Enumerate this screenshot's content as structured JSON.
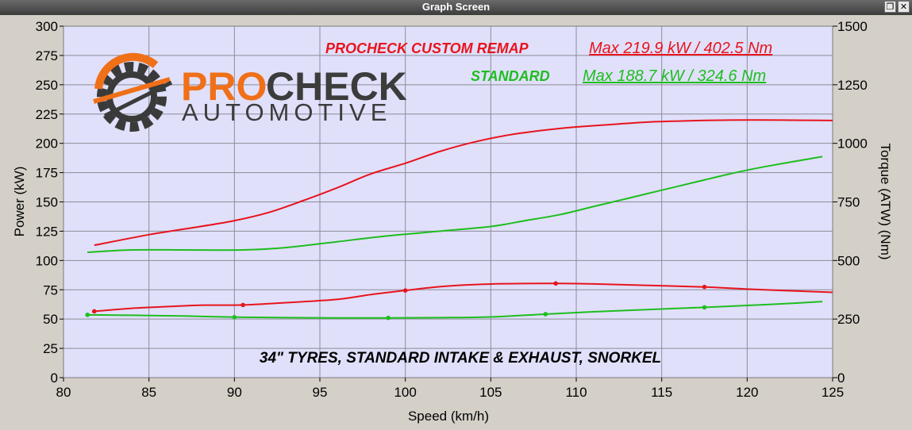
{
  "window": {
    "title": "Graph Screen",
    "restore_icon": "restore-icon",
    "close_icon": "close-icon",
    "close_glyph": "✕",
    "restore_glyph": "❐"
  },
  "logo": {
    "line1_pro": "PRO",
    "line1_check": "CHECK",
    "line2": "AUTOMOTIVE"
  },
  "labels": {
    "remap_title": "PROCHECK CUSTOM REMAP",
    "remap_max": "Max 219.9 kW  / 402.5 Nm",
    "standard_title": "STANDARD",
    "standard_max": "Max 188.7 kW  / 324.6 Nm",
    "note": "34\" TYRES, STANDARD INTAKE & EXHAUST, SNORKEL"
  },
  "colors": {
    "remap": "#e8141c",
    "standard": "#1ebe1e",
    "plot_bg": "#e0e0fb",
    "grid": "#8c8c96"
  },
  "chart_data": {
    "type": "line",
    "xlabel": "Speed (km/h)",
    "ylabel": "Power (kW)",
    "y2label": "Torque (ATW) (Nm)",
    "xlim": [
      80,
      125
    ],
    "ylim": [
      0,
      300
    ],
    "y2lim": [
      0,
      1500
    ],
    "xticks": [
      80,
      85,
      90,
      95,
      100,
      105,
      110,
      115,
      120,
      125
    ],
    "yticks": [
      0,
      25,
      50,
      75,
      100,
      125,
      150,
      175,
      200,
      225,
      250,
      275,
      300
    ],
    "y2ticks": [
      0,
      250,
      500,
      750,
      1000,
      1250,
      1500
    ],
    "grid": true,
    "series": [
      {
        "name": "PROCHECK CUSTOM REMAP",
        "quantity": "power",
        "axis": "left",
        "color": "#e8141c",
        "x": [
          81.8,
          85,
          88,
          90,
          92,
          94,
          96,
          98,
          100,
          102,
          104,
          106,
          108,
          110,
          112,
          114,
          116,
          118,
          120,
          122,
          125
        ],
        "y": [
          113,
          122,
          129,
          134,
          141,
          151,
          162,
          174,
          183,
          193,
          201,
          207,
          211,
          214,
          216,
          218,
          219,
          219.7,
          219.9,
          219.8,
          219.5
        ]
      },
      {
        "name": "PROCHECK CUSTOM REMAP",
        "quantity": "torque",
        "axis": "right",
        "color": "#e8141c",
        "x": [
          81.8,
          84,
          86,
          88,
          90.5,
          93,
          96,
          98,
          100,
          102,
          104,
          106,
          108.8,
          111,
          114,
          117.5,
          120,
          122,
          125
        ],
        "y": [
          283,
          296,
          303,
          309,
          310,
          320,
          334,
          355,
          372,
          388,
          397,
          401,
          402,
          400,
          394,
          387,
          378,
          372,
          364
        ]
      },
      {
        "name": "STANDARD",
        "quantity": "power",
        "axis": "left",
        "color": "#1ebe1e",
        "x": [
          81.4,
          84,
          87,
          90.5,
          93,
          96,
          99,
          102,
          105,
          107,
          109,
          111,
          113,
          115,
          117,
          119,
          121,
          124.4
        ],
        "y": [
          107,
          109,
          109,
          109,
          111,
          116,
          121,
          125,
          129,
          134,
          139,
          146,
          153,
          160,
          167,
          174,
          180,
          188.7
        ]
      },
      {
        "name": "STANDARD",
        "quantity": "torque",
        "axis": "right",
        "color": "#1ebe1e",
        "x": [
          81.4,
          84,
          87,
          90,
          93,
          96,
          99,
          102,
          105,
          108.2,
          111,
          114,
          117.5,
          120,
          122,
          124.4
        ],
        "y": [
          268,
          266,
          263,
          258,
          256,
          255,
          255,
          256,
          259,
          271,
          281,
          290,
          300,
          308,
          315,
          324.6
        ]
      }
    ],
    "markers": [
      {
        "series": 1,
        "x": [
          81.8,
          90.5,
          100,
          108.8,
          117.5
        ]
      },
      {
        "series": 3,
        "x": [
          81.4,
          90,
          99,
          108.2,
          117.5
        ]
      }
    ]
  }
}
